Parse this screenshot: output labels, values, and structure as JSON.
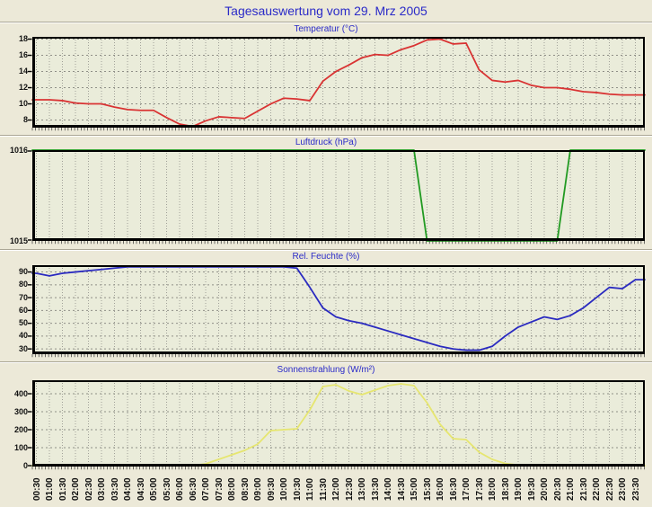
{
  "page": {
    "title": "Tagesauswertung vom 29. Mrz 2005",
    "background_color": "#ece9d8",
    "plot_background_color": "#eaecda",
    "accent_text_color": "#2a2ac8"
  },
  "chart_data": {
    "type": "line",
    "x_tick_interval": "30min",
    "x_labels_rotated": true,
    "grid": true,
    "legend": "none",
    "categories": [
      "00:30",
      "01:00",
      "01:30",
      "02:00",
      "02:30",
      "03:00",
      "03:30",
      "04:00",
      "04:30",
      "05:00",
      "05:30",
      "06:00",
      "06:30",
      "07:00",
      "07:30",
      "08:00",
      "08:30",
      "09:00",
      "09:30",
      "10:00",
      "10:30",
      "11:00",
      "11:30",
      "12:00",
      "12:30",
      "13:00",
      "13:30",
      "14:00",
      "14:30",
      "15:00",
      "15:30",
      "16:00",
      "16:30",
      "17:00",
      "17:30",
      "18:00",
      "18:30",
      "19:00",
      "19:30",
      "20:00",
      "20:30",
      "21:00",
      "21:30",
      "22:00",
      "22:30",
      "23:00",
      "23:30"
    ],
    "charts": [
      {
        "title": "Temperatur (°C)",
        "color": "#d93333",
        "ylim": [
          7.06,
          18.28
        ],
        "yticks": [
          18,
          16,
          14,
          12,
          10,
          8
        ],
        "values": [
          10.5,
          10.5,
          10.4,
          10.1,
          10.0,
          10.0,
          9.6,
          9.3,
          9.2,
          9.2,
          8.3,
          7.5,
          7.2,
          7.9,
          8.4,
          8.3,
          8.2,
          9.1,
          10.0,
          10.7,
          10.6,
          10.4,
          12.8,
          14.0,
          14.8,
          15.7,
          16.1,
          16.0,
          16.7,
          17.2,
          17.9,
          18.0,
          17.4,
          17.5,
          14.2,
          12.9,
          12.7,
          12.9,
          12.3,
          12.0,
          12.0,
          11.8,
          11.5,
          11.4,
          11.2,
          11.1,
          11.1
        ]
      },
      {
        "title": "Luftdruck (hPa)",
        "color": "#219a21",
        "ylim": [
          1015,
          1016
        ],
        "yticks": [
          1016,
          1015
        ],
        "values": [
          1016,
          1016,
          1016,
          1016,
          1016,
          1016,
          1016,
          1016,
          1016,
          1016,
          1016,
          1016,
          1016,
          1016,
          1016,
          1016,
          1016,
          1016,
          1016,
          1016,
          1016,
          1016,
          1016,
          1016,
          1016,
          1016,
          1016,
          1016,
          1016,
          1016,
          1015,
          1015,
          1015,
          1015,
          1015,
          1015,
          1015,
          1015,
          1015,
          1015,
          1015,
          1016,
          1016,
          1016,
          1016,
          1016,
          1016
        ]
      },
      {
        "title": "Rel. Feuchte (%)",
        "color": "#2a2ac0",
        "ylim": [
          25.9,
          95.3
        ],
        "yticks": [
          90,
          80,
          70,
          60,
          50,
          40,
          30
        ],
        "values": [
          89,
          87,
          89,
          90,
          91,
          92,
          93,
          94,
          94,
          94,
          94,
          94,
          94,
          94,
          94,
          94,
          94,
          94,
          94,
          94,
          93,
          78,
          62,
          55,
          52,
          50,
          47,
          44,
          41,
          38,
          35,
          32,
          30,
          29,
          29,
          32,
          40,
          47,
          51,
          55,
          53,
          56,
          62,
          70,
          78,
          77,
          84
        ]
      },
      {
        "title": "Sonnenstrahlung (W/m²)",
        "color": "#e6e670",
        "ylim": [
          -5,
          475
        ],
        "yticks": [
          400,
          300,
          200,
          100,
          0
        ],
        "values": [
          0,
          0,
          0,
          0,
          0,
          0,
          0,
          0,
          0,
          0,
          0,
          0,
          0,
          10,
          35,
          60,
          85,
          120,
          195,
          200,
          205,
          310,
          440,
          450,
          415,
          395,
          420,
          445,
          455,
          445,
          350,
          230,
          150,
          145,
          75,
          35,
          12,
          3,
          0,
          0,
          0,
          0,
          0,
          0,
          0,
          0,
          0
        ]
      }
    ]
  }
}
